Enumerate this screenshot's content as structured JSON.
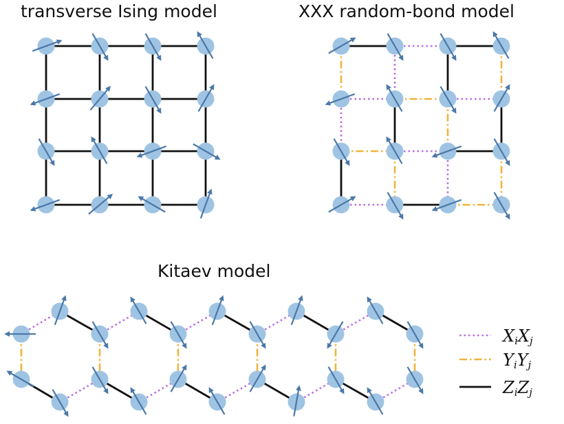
{
  "titles": {
    "transverse_ising": "transverse Ising model",
    "xxx_random_bond": "XXX random-bond model",
    "kitaev": "Kitaev model"
  },
  "colors": {
    "node": "#9fc4e3",
    "spin_arrow": "#4b78a8",
    "xx_bond": "#b96be0",
    "yy_bond": "#f0b43c",
    "zz_bond": "#111111"
  },
  "legend": [
    {
      "type": "xx",
      "base1": "X",
      "sub1": "i",
      "base2": "X",
      "sub2": "j"
    },
    {
      "type": "yy",
      "base1": "Y",
      "sub1": "i",
      "base2": "Y",
      "sub2": "j"
    },
    {
      "type": "zz",
      "base1": "Z",
      "sub1": "i",
      "base2": "Z",
      "sub2": "j"
    }
  ]
}
